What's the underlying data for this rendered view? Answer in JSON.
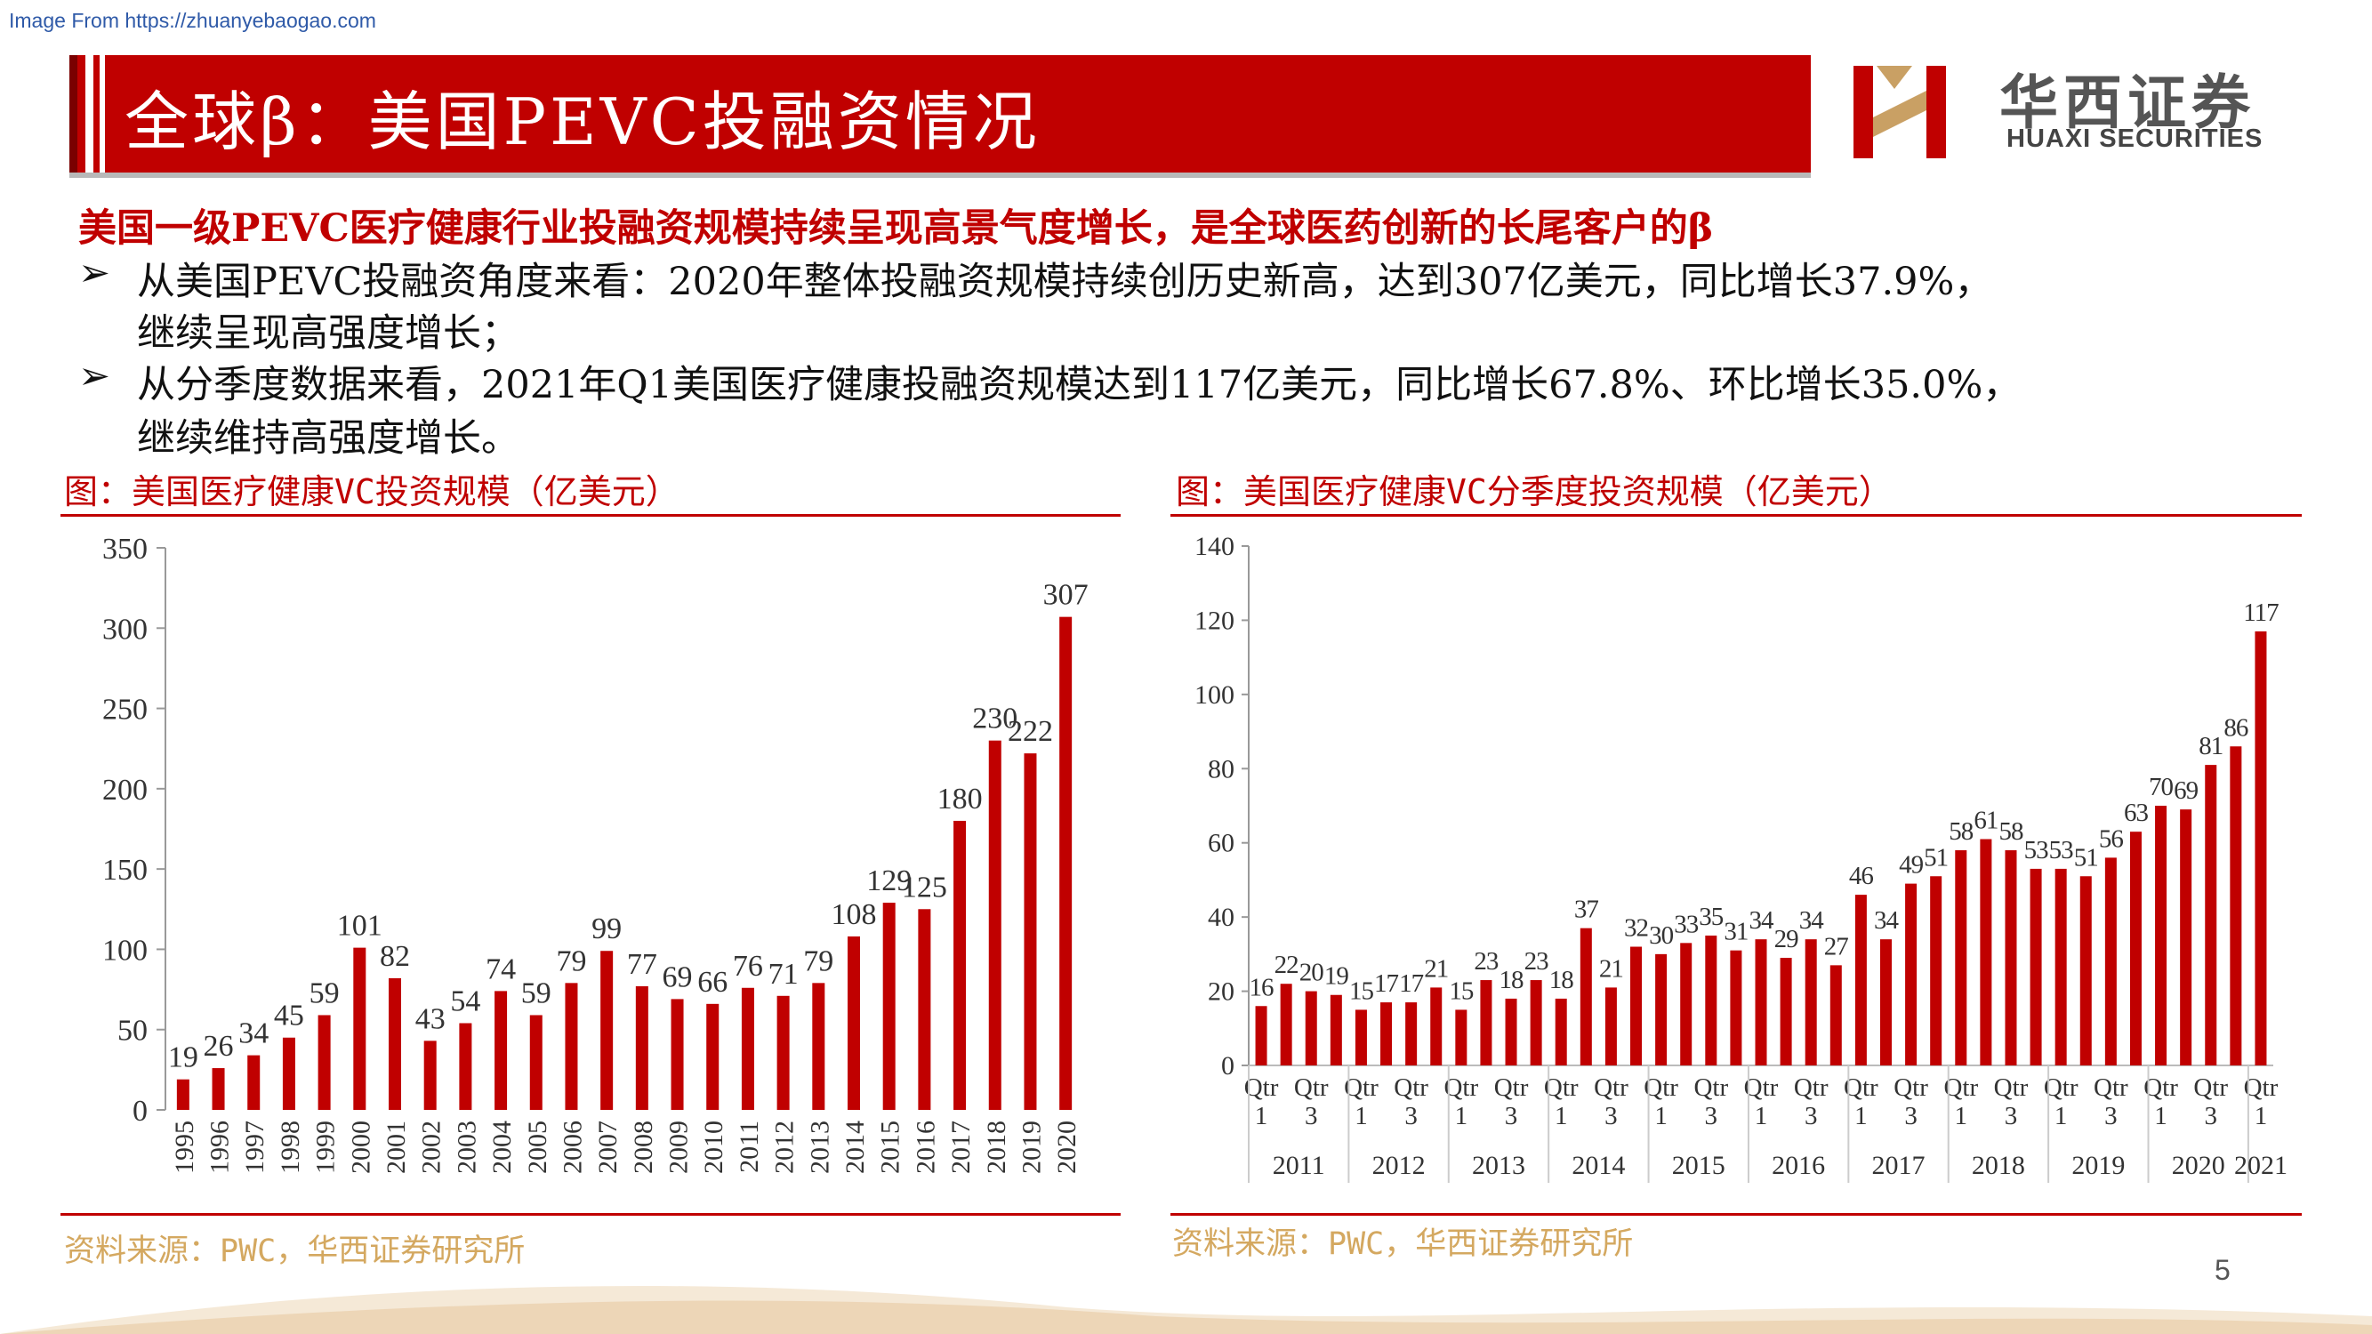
{
  "watermark": "Image From https://zhuanyebaogao.com",
  "title": "全球β：美国PEVC投融资情况",
  "logo": {
    "cn": "华西证券",
    "en": "HUAXI SECURITIES",
    "color": "#c00000"
  },
  "headline": "美国一级PEVC医疗健康行业投融资规模持续呈现高景气度增长，是全球医药创新的长尾客户的β",
  "bullets": [
    {
      "line1": "从美国PEVC投融资角度来看：2020年整体投融资规模持续创历史新高，达到307亿美元，同比增长37.9%，",
      "line2": "继续呈现高强度增长；"
    },
    {
      "line1": "从分季度数据来看，2021年Q1美国医疗健康投融资规模达到117亿美元，同比增长67.8%、环比增长35.0%，",
      "line2": "继续维持高强度增长。"
    }
  ],
  "bullet_symbol": "➢",
  "left_caption": "图：美国医疗健康VC投资规模（亿美元）",
  "right_caption": "图：美国医疗健康VC分季度投资规模（亿美元）",
  "left_source": "资料来源：PWC，华西证券研究所",
  "right_source": "资料来源：PWC，华西证券研究所",
  "page_number": "5",
  "accent_color": "#c00000",
  "chart_data": [
    {
      "type": "bar",
      "categories": [
        "1995",
        "1996",
        "1997",
        "1998",
        "1999",
        "2000",
        "2001",
        "2002",
        "2003",
        "2004",
        "2005",
        "2006",
        "2007",
        "2008",
        "2009",
        "2010",
        "2011",
        "2012",
        "2013",
        "2014",
        "2015",
        "2016",
        "2017",
        "2018",
        "2019",
        "2020"
      ],
      "values": [
        19,
        26,
        34,
        45,
        59,
        101,
        82,
        43,
        54,
        74,
        59,
        79,
        99,
        77,
        69,
        66,
        76,
        71,
        79,
        108,
        129,
        125,
        180,
        230,
        222,
        307
      ],
      "yticks": [
        "0",
        "50",
        "100",
        "150",
        "200",
        "250",
        "300",
        "350"
      ],
      "ylim": [
        0,
        350
      ],
      "bar_color": "#c00000"
    },
    {
      "type": "bar",
      "quarter_labels": [
        "Qtr",
        "1",
        "Qtr",
        "3"
      ],
      "years": [
        "2011",
        "2012",
        "2013",
        "2014",
        "2015",
        "2016",
        "2017",
        "2018",
        "2019",
        "2020",
        "2021"
      ],
      "values": [
        16,
        22,
        20,
        19,
        15,
        17,
        17,
        21,
        15,
        23,
        18,
        23,
        18,
        37,
        21,
        32,
        30,
        33,
        35,
        31,
        34,
        29,
        34,
        27,
        46,
        34,
        49,
        51,
        58,
        61,
        58,
        53,
        53,
        51,
        56,
        63,
        70,
        69,
        81,
        86,
        117
      ],
      "yticks": [
        "0",
        "20",
        "40",
        "60",
        "80",
        "100",
        "120",
        "140"
      ],
      "ylim": [
        0,
        140
      ],
      "bar_color": "#c00000"
    }
  ]
}
